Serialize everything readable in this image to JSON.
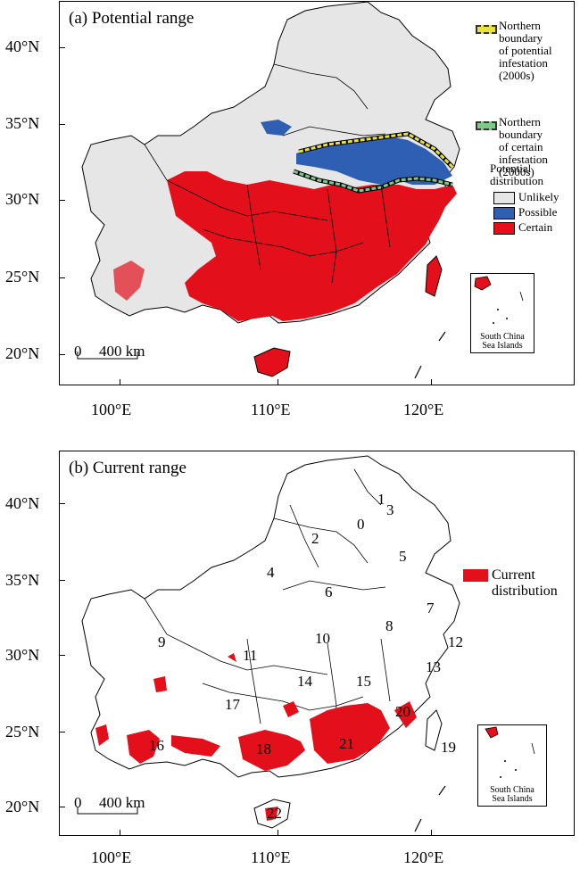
{
  "panel_a": {
    "title": "(a) Potential range",
    "legend_boundaries": [
      {
        "label": "Northern boundary of potential infestation (2000s)",
        "lines": [
          "Northern",
          "boundary",
          "of potential",
          "infestation",
          "(2000s)"
        ],
        "color": "#e8e23a"
      },
      {
        "label": "Northern boundary of certain infestation (2000s)",
        "lines": [
          "Northern",
          "boundary",
          "of certain",
          "infestation",
          "(2000s)"
        ],
        "color": "#7cc98a"
      }
    ],
    "legend_title_lines": [
      "Potential",
      "distribution"
    ],
    "legend_classes": [
      {
        "label": "Unlikely",
        "color": "#e6e6e6"
      },
      {
        "label": "Possible",
        "color": "#2f5fb3"
      },
      {
        "label": "Certain",
        "color": "#e3101b"
      }
    ],
    "inset_label_lines": [
      "South China",
      "Sea Islands"
    ],
    "scale_zero": "0",
    "scale_label": "400 km"
  },
  "panel_b": {
    "title": "(b) Current range",
    "legend_lines": [
      "Current",
      "distribution"
    ],
    "legend_color": "#e3101b",
    "inset_label_lines": [
      "South China",
      "Sea Islands"
    ],
    "scale_zero": "0",
    "scale_label": "400 km",
    "province_numbers": [
      "0",
      "1",
      "2",
      "3",
      "4",
      "5",
      "6",
      "7",
      "8",
      "10",
      "11",
      "12",
      "13",
      "14",
      "15",
      "16",
      "17",
      "18",
      "19",
      "20",
      "21",
      "22",
      "9"
    ]
  },
  "axes": {
    "lat_labels": [
      "40°N",
      "35°N",
      "30°N",
      "25°N",
      "20°N"
    ],
    "lon_labels": [
      "100°E",
      "110°E",
      "120°E"
    ]
  },
  "colors": {
    "unlikely": "#e6e6e6",
    "possible": "#2f5fb3",
    "certain": "#e3101b"
  }
}
